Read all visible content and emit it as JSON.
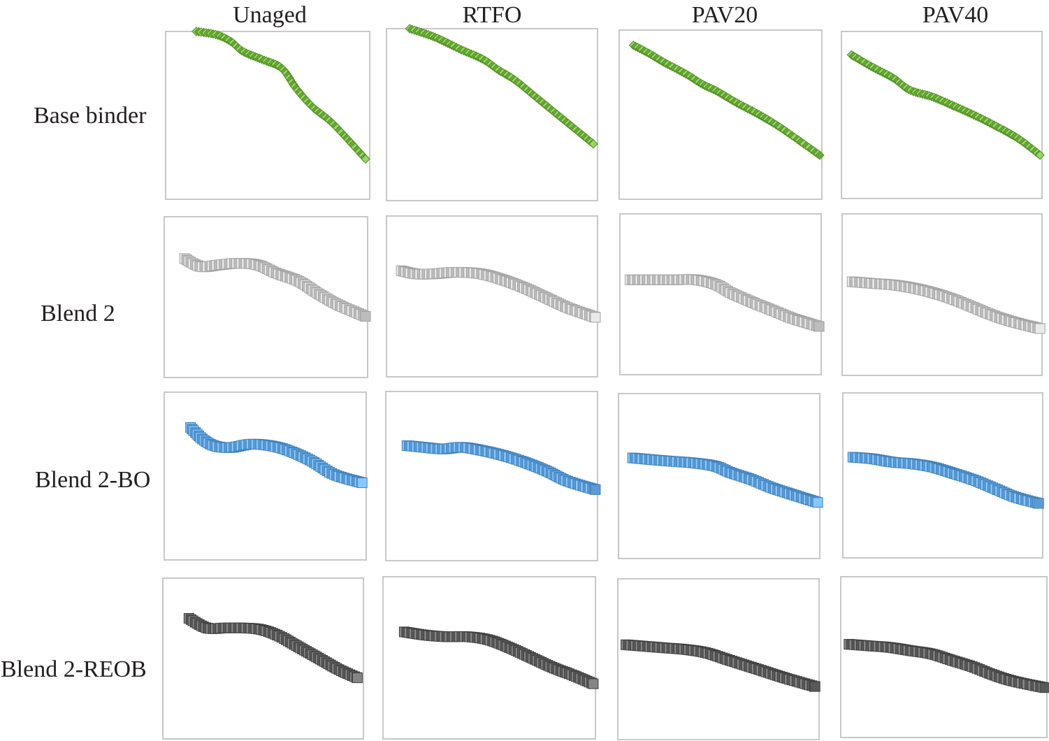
{
  "chart_data": {
    "type": "scatter",
    "layout": "small-multiples grid",
    "columns": [
      "Unaged",
      "RTFO",
      "PAV20",
      "PAV40"
    ],
    "rows": [
      {
        "name": "Base binder",
        "color": "#6aaa3a",
        "marker": "diamond"
      },
      {
        "name": "Blend 2",
        "color": "#bdbdbd",
        "marker": "square"
      },
      {
        "name": "Blend 2-BO",
        "color": "#5b9bd5",
        "marker": "square"
      },
      {
        "name": "Blend 2-REOB",
        "color": "#595959",
        "marker": "square"
      }
    ],
    "axes": {
      "visible": false,
      "x_range": [
        0,
        1
      ],
      "y_range": [
        0,
        1
      ]
    },
    "panels": [
      [
        {
          "x": [
            0.15,
            0.25,
            0.32,
            0.38,
            0.48,
            0.57,
            0.64,
            0.72,
            0.82,
            0.98
          ],
          "y": [
            1.0,
            0.98,
            0.94,
            0.88,
            0.83,
            0.78,
            0.66,
            0.55,
            0.45,
            0.24
          ]
        },
        {
          "x": [
            0.11,
            0.23,
            0.35,
            0.46,
            0.53,
            0.61,
            0.72,
            0.83,
            0.93,
            0.98
          ],
          "y": [
            1.0,
            0.95,
            0.88,
            0.82,
            0.76,
            0.7,
            0.59,
            0.48,
            0.38,
            0.33
          ]
        },
        {
          "x": [
            0.07,
            0.15,
            0.22,
            0.33,
            0.41,
            0.48,
            0.58,
            0.69,
            0.8,
            0.99
          ],
          "y": [
            0.91,
            0.86,
            0.81,
            0.74,
            0.68,
            0.64,
            0.57,
            0.5,
            0.42,
            0.26
          ]
        },
        {
          "x": [
            0.05,
            0.15,
            0.26,
            0.34,
            0.45,
            0.53,
            0.66,
            0.76,
            0.88,
            0.99
          ],
          "y": [
            0.86,
            0.79,
            0.72,
            0.65,
            0.61,
            0.57,
            0.5,
            0.44,
            0.36,
            0.26
          ]
        }
      ],
      [
        {
          "x": [
            0.1,
            0.18,
            0.27,
            0.36,
            0.46,
            0.55,
            0.66,
            0.76,
            0.86,
            0.99
          ],
          "y": [
            0.74,
            0.69,
            0.7,
            0.71,
            0.7,
            0.65,
            0.6,
            0.52,
            0.45,
            0.38
          ]
        },
        {
          "x": [
            0.07,
            0.14,
            0.22,
            0.33,
            0.45,
            0.56,
            0.66,
            0.76,
            0.86,
            0.99
          ],
          "y": [
            0.66,
            0.64,
            0.64,
            0.65,
            0.64,
            0.6,
            0.55,
            0.49,
            0.43,
            0.37
          ]
        },
        {
          "x": [
            0.05,
            0.15,
            0.26,
            0.38,
            0.48,
            0.55,
            0.66,
            0.76,
            0.86,
            0.99
          ],
          "y": [
            0.59,
            0.59,
            0.59,
            0.59,
            0.56,
            0.51,
            0.45,
            0.4,
            0.35,
            0.3
          ]
        },
        {
          "x": [
            0.05,
            0.15,
            0.26,
            0.36,
            0.46,
            0.56,
            0.66,
            0.76,
            0.86,
            0.99
          ],
          "y": [
            0.58,
            0.57,
            0.56,
            0.54,
            0.51,
            0.47,
            0.42,
            0.37,
            0.33,
            0.29
          ]
        }
      ],
      [
        {
          "x": [
            0.13,
            0.19,
            0.25,
            0.33,
            0.43,
            0.53,
            0.62,
            0.73,
            0.84,
            0.98
          ],
          "y": [
            0.79,
            0.72,
            0.68,
            0.67,
            0.69,
            0.68,
            0.65,
            0.59,
            0.51,
            0.46
          ]
        },
        {
          "x": [
            0.1,
            0.18,
            0.27,
            0.36,
            0.46,
            0.56,
            0.66,
            0.76,
            0.86,
            0.99
          ],
          "y": [
            0.68,
            0.67,
            0.66,
            0.67,
            0.65,
            0.62,
            0.58,
            0.53,
            0.47,
            0.42
          ]
        },
        {
          "x": [
            0.07,
            0.16,
            0.26,
            0.37,
            0.48,
            0.56,
            0.66,
            0.76,
            0.86,
            0.99
          ],
          "y": [
            0.61,
            0.6,
            0.59,
            0.58,
            0.56,
            0.52,
            0.48,
            0.43,
            0.39,
            0.34
          ]
        },
        {
          "x": [
            0.05,
            0.15,
            0.25,
            0.35,
            0.45,
            0.56,
            0.66,
            0.76,
            0.86,
            0.98
          ],
          "y": [
            0.61,
            0.6,
            0.58,
            0.57,
            0.55,
            0.51,
            0.47,
            0.42,
            0.37,
            0.33
          ]
        }
      ],
      [
        {
          "x": [
            0.13,
            0.22,
            0.31,
            0.4,
            0.49,
            0.58,
            0.68,
            0.78,
            0.88,
            0.97
          ],
          "y": [
            0.75,
            0.69,
            0.69,
            0.69,
            0.68,
            0.64,
            0.57,
            0.5,
            0.43,
            0.38
          ]
        },
        {
          "x": [
            0.1,
            0.2,
            0.3,
            0.4,
            0.5,
            0.6,
            0.7,
            0.8,
            0.9,
            0.99
          ],
          "y": [
            0.66,
            0.64,
            0.63,
            0.63,
            0.61,
            0.56,
            0.5,
            0.44,
            0.39,
            0.34
          ]
        },
        {
          "x": [
            0.04,
            0.14,
            0.24,
            0.34,
            0.44,
            0.54,
            0.64,
            0.74,
            0.84,
            0.98
          ],
          "y": [
            0.59,
            0.58,
            0.57,
            0.56,
            0.54,
            0.5,
            0.46,
            0.42,
            0.38,
            0.33
          ]
        },
        {
          "x": [
            0.04,
            0.14,
            0.24,
            0.34,
            0.44,
            0.54,
            0.64,
            0.74,
            0.84,
            0.99
          ],
          "y": [
            0.58,
            0.57,
            0.56,
            0.54,
            0.52,
            0.48,
            0.44,
            0.39,
            0.35,
            0.31
          ]
        }
      ]
    ]
  }
}
